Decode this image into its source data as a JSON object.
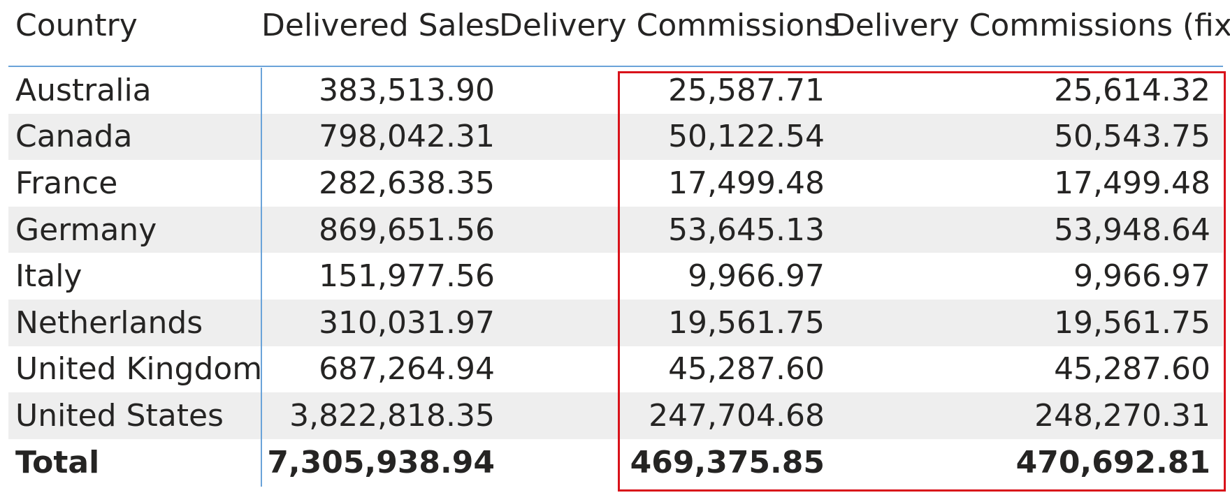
{
  "table": {
    "headers": [
      "Country",
      "Delivered Sales",
      "Delivery Commissions",
      "Delivery Commissions (fix)"
    ],
    "rows": [
      [
        "Australia",
        "383,513.90",
        "25,587.71",
        "25,614.32"
      ],
      [
        "Canada",
        "798,042.31",
        "50,122.54",
        "50,543.75"
      ],
      [
        "France",
        "282,638.35",
        "17,499.48",
        "17,499.48"
      ],
      [
        "Germany",
        "869,651.56",
        "53,645.13",
        "53,948.64"
      ],
      [
        "Italy",
        "151,977.56",
        "9,966.97",
        "9,966.97"
      ],
      [
        "Netherlands",
        "310,031.97",
        "19,561.75",
        "19,561.75"
      ],
      [
        "United Kingdom",
        "687,264.94",
        "45,287.60",
        "45,287.60"
      ],
      [
        "United States",
        "3,822,818.35",
        "247,704.68",
        "248,270.31"
      ]
    ],
    "total": [
      "Total",
      "7,305,938.94",
      "469,375.85",
      "470,692.81"
    ]
  },
  "colors": {
    "text": "#252423",
    "header_border": "#6aa3d9",
    "alt_row": "#eeeeee",
    "highlight": "#d9121a"
  }
}
